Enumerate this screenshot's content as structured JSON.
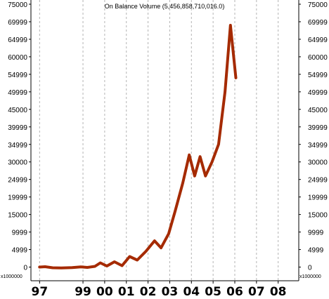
{
  "chart_data": {
    "type": "line",
    "title": "On Balance Volume (5,456,858,710,016.0)",
    "scale_label": "x1000000",
    "y_ticks": [
      "75000",
      "69999",
      "64999",
      "60000",
      "54999",
      "49999",
      "45000",
      "39999",
      "34999",
      "30000",
      "24999",
      "19999",
      "15000",
      "9999",
      "4999",
      "0"
    ],
    "y_tick_values": [
      75000,
      69999,
      64999,
      60000,
      54999,
      49999,
      45000,
      39999,
      34999,
      30000,
      24999,
      19999,
      15000,
      9999,
      4999,
      0
    ],
    "ylim": [
      -3500,
      75000
    ],
    "x_ticks": [
      "97",
      "99",
      "00",
      "01",
      "02",
      "03",
      "04",
      "05",
      "06",
      "07",
      "08"
    ],
    "x_tick_values": [
      1997,
      1999,
      2000,
      2001,
      2002,
      2003,
      2004,
      2005,
      2006,
      2007,
      2008
    ],
    "xlim": [
      1996.6,
      2008.95
    ],
    "grid": "vertical dashed",
    "series": [
      {
        "color": "#a52a00",
        "x": [
          1997.0,
          1997.25,
          1997.6,
          1998.0,
          1998.5,
          1998.9,
          1999.2,
          1999.55,
          1999.8,
          2000.1,
          2000.45,
          2000.8,
          2001.15,
          2001.5,
          2001.9,
          2002.3,
          2002.6,
          2002.95,
          2003.25,
          2003.6,
          2003.9,
          2004.15,
          2004.4,
          2004.65,
          2004.95,
          2005.25,
          2005.55,
          2005.8,
          2006.05
        ],
        "values": [
          0,
          100,
          -200,
          -250,
          -150,
          50,
          -100,
          200,
          1200,
          300,
          1500,
          400,
          3000,
          2000,
          4500,
          7500,
          5500,
          9500,
          16000,
          24000,
          32000,
          26000,
          31500,
          26000,
          30000,
          35000,
          50000,
          69000,
          54000
        ]
      }
    ]
  }
}
